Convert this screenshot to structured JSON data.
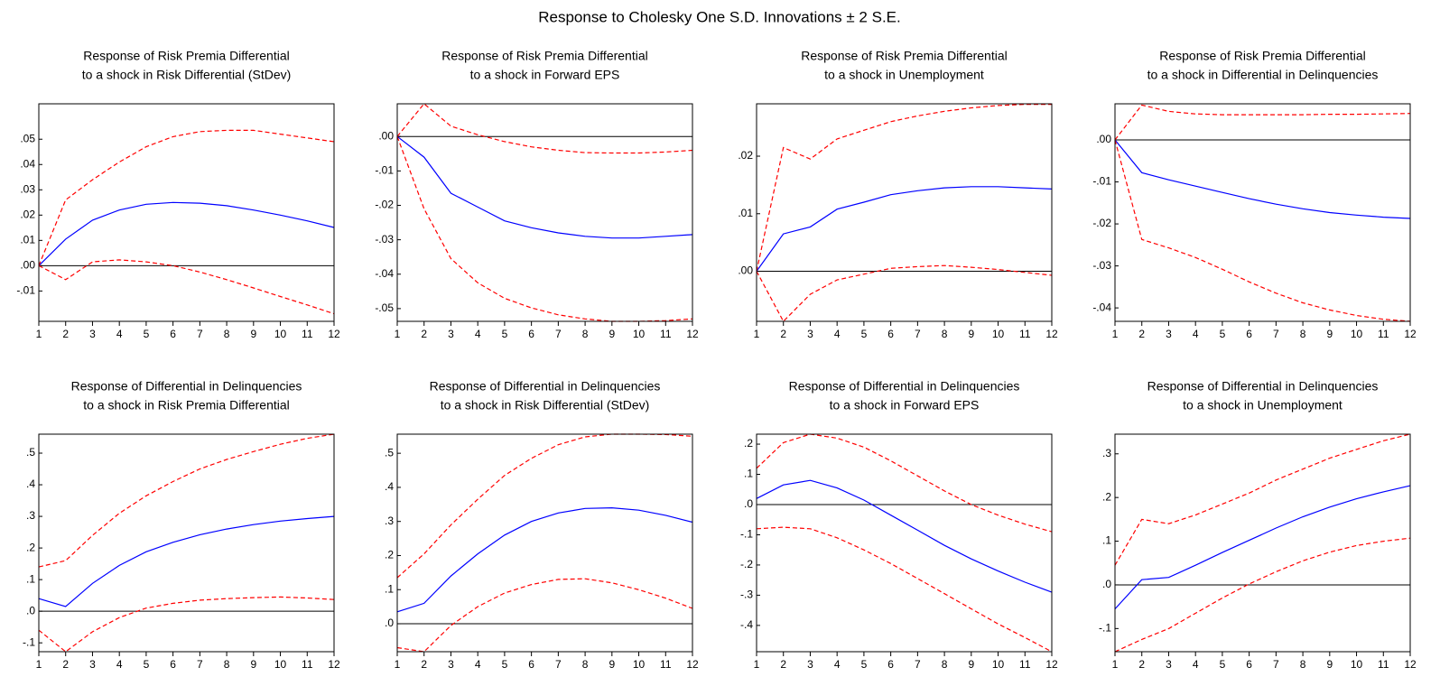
{
  "title": "Response to Cholesky One S.D. Innovations ± 2 S.E.",
  "chart_data": [
    {
      "type": "line",
      "title": "Response of Risk Premia Differential",
      "subtitle": "to a shock in Risk Differential (StDev)",
      "x": [
        1,
        2,
        3,
        4,
        5,
        6,
        7,
        8,
        9,
        10,
        11,
        12
      ],
      "xlim": [
        1,
        12
      ],
      "xticks": [
        1,
        2,
        3,
        4,
        5,
        6,
        7,
        8,
        9,
        10,
        11,
        12
      ],
      "ylim": [
        -0.022,
        0.064
      ],
      "yticks": [
        {
          "value": -0.01,
          "label": "-.01"
        },
        {
          "value": 0,
          "label": ".00"
        },
        {
          "value": 0.01,
          "label": ".01"
        },
        {
          "value": 0.02,
          "label": ".02"
        },
        {
          "value": 0.03,
          "label": ".03"
        },
        {
          "value": 0.04,
          "label": ".04"
        },
        {
          "value": 0.05,
          "label": ".05"
        }
      ],
      "zero_line": 0,
      "series": [
        {
          "color": "#0000ff",
          "dash": false,
          "values": [
            0,
            0.0105,
            0.018,
            0.022,
            0.0243,
            0.025,
            0.0247,
            0.0237,
            0.022,
            0.02,
            0.0177,
            0.0151
          ]
        },
        {
          "color": "#ff0000",
          "dash": true,
          "values": [
            0,
            0.026,
            0.034,
            0.041,
            0.047,
            0.051,
            0.053,
            0.0535,
            0.0535,
            0.052,
            0.0505,
            0.049
          ]
        },
        {
          "color": "#ff0000",
          "dash": true,
          "values": [
            0,
            -0.0055,
            0.0015,
            0.0023,
            0.0015,
            0,
            -0.0025,
            -0.0055,
            -0.0088,
            -0.0122,
            -0.0155,
            -0.019
          ]
        }
      ]
    },
    {
      "type": "line",
      "title": "Response of Risk Premia Differential",
      "subtitle": "to a shock in Forward EPS",
      "x": [
        1,
        2,
        3,
        4,
        5,
        6,
        7,
        8,
        9,
        10,
        11,
        12
      ],
      "xlim": [
        1,
        12
      ],
      "xticks": [
        1,
        2,
        3,
        4,
        5,
        6,
        7,
        8,
        9,
        10,
        11,
        12
      ],
      "ylim": [
        -0.0537,
        0.0095
      ],
      "yticks": [
        {
          "value": -0.05,
          "label": "-.05"
        },
        {
          "value": -0.04,
          "label": "-.04"
        },
        {
          "value": -0.03,
          "label": "-.03"
        },
        {
          "value": -0.02,
          "label": "-.02"
        },
        {
          "value": -0.01,
          "label": "-.01"
        },
        {
          "value": 0,
          "label": ".00"
        }
      ],
      "zero_line": 0,
      "series": [
        {
          "color": "#0000ff",
          "dash": false,
          "values": [
            0,
            -0.006,
            -0.0165,
            -0.0205,
            -0.0245,
            -0.0265,
            -0.028,
            -0.029,
            -0.0295,
            -0.0295,
            -0.029,
            -0.0285
          ]
        },
        {
          "color": "#ff0000",
          "dash": true,
          "values": [
            0,
            0.0095,
            0.003,
            0.0005,
            -0.0015,
            -0.003,
            -0.004,
            -0.0047,
            -0.0048,
            -0.0048,
            -0.0045,
            -0.004
          ]
        },
        {
          "color": "#ff0000",
          "dash": true,
          "values": [
            0,
            -0.021,
            -0.0355,
            -0.0425,
            -0.047,
            -0.0498,
            -0.0518,
            -0.053,
            -0.0537,
            -0.0537,
            -0.0535,
            -0.053
          ]
        }
      ]
    },
    {
      "type": "line",
      "title": "Response of Risk Premia Differential",
      "subtitle": "to a shock in Unemployment",
      "x": [
        1,
        2,
        3,
        4,
        5,
        6,
        7,
        8,
        9,
        10,
        11,
        12
      ],
      "xlim": [
        1,
        12
      ],
      "xticks": [
        1,
        2,
        3,
        4,
        5,
        6,
        7,
        8,
        9,
        10,
        11,
        12
      ],
      "ylim": [
        -0.0087,
        0.0291
      ],
      "yticks": [
        {
          "value": 0,
          "label": ".00"
        },
        {
          "value": 0.01,
          "label": ".01"
        },
        {
          "value": 0.02,
          "label": ".02"
        }
      ],
      "zero_line": 0,
      "series": [
        {
          "color": "#0000ff",
          "dash": false,
          "values": [
            0,
            0.0065,
            0.0077,
            0.0108,
            0.012,
            0.0133,
            0.014,
            0.0145,
            0.0147,
            0.0147,
            0.0145,
            0.0143
          ]
        },
        {
          "color": "#ff0000",
          "dash": true,
          "values": [
            0,
            0.0215,
            0.0195,
            0.023,
            0.0245,
            0.026,
            0.027,
            0.0278,
            0.0284,
            0.0288,
            0.029,
            0.029
          ]
        },
        {
          "color": "#ff0000",
          "dash": true,
          "values": [
            0,
            -0.0087,
            -0.004,
            -0.0015,
            -0.0005,
            0.0005,
            0.0008,
            0.001,
            0.0007,
            0.0003,
            -0.0002,
            -0.0007
          ]
        }
      ]
    },
    {
      "type": "line",
      "title": "Response of Risk Premia Differential",
      "subtitle": "to a shock in  Differential in Delinquencies",
      "x": [
        1,
        2,
        3,
        4,
        5,
        6,
        7,
        8,
        9,
        10,
        11,
        12
      ],
      "xlim": [
        1,
        12
      ],
      "xticks": [
        1,
        2,
        3,
        4,
        5,
        6,
        7,
        8,
        9,
        10,
        11,
        12
      ],
      "ylim": [
        -0.0432,
        0.0086
      ],
      "yticks": [
        {
          "value": -0.04,
          "label": "-.04"
        },
        {
          "value": -0.03,
          "label": "-.03"
        },
        {
          "value": -0.02,
          "label": "-.02"
        },
        {
          "value": -0.01,
          "label": "-.01"
        },
        {
          "value": 0,
          "label": ".00"
        }
      ],
      "zero_line": 0,
      "series": [
        {
          "color": "#0000ff",
          "dash": false,
          "values": [
            0,
            -0.0078,
            -0.0095,
            -0.011,
            -0.0125,
            -0.014,
            -0.0153,
            -0.0164,
            -0.0173,
            -0.0179,
            -0.0184,
            -0.0187
          ]
        },
        {
          "color": "#ff0000",
          "dash": true,
          "values": [
            0,
            0.0083,
            0.0068,
            0.0062,
            0.006,
            0.006,
            0.006,
            0.006,
            0.0061,
            0.0061,
            0.0062,
            0.0063
          ]
        },
        {
          "color": "#ff0000",
          "dash": true,
          "values": [
            0,
            -0.0237,
            -0.0257,
            -0.028,
            -0.0308,
            -0.0338,
            -0.0365,
            -0.0388,
            -0.0405,
            -0.0418,
            -0.0427,
            -0.0432
          ]
        }
      ]
    },
    {
      "type": "line",
      "title": "Response of Differential in Delinquencies",
      "subtitle": "to a shock in Risk Premia Differential",
      "x": [
        1,
        2,
        3,
        4,
        5,
        6,
        7,
        8,
        9,
        10,
        11,
        12
      ],
      "xlim": [
        1,
        12
      ],
      "xticks": [
        1,
        2,
        3,
        4,
        5,
        6,
        7,
        8,
        9,
        10,
        11,
        12
      ],
      "ylim": [
        -0.128,
        0.56
      ],
      "yticks": [
        {
          "value": -0.1,
          "label": "-.1"
        },
        {
          "value": 0,
          "label": ".0"
        },
        {
          "value": 0.1,
          "label": ".1"
        },
        {
          "value": 0.2,
          "label": ".2"
        },
        {
          "value": 0.3,
          "label": ".3"
        },
        {
          "value": 0.4,
          "label": ".4"
        },
        {
          "value": 0.5,
          "label": ".5"
        }
      ],
      "zero_line": 0,
      "series": [
        {
          "color": "#0000ff",
          "dash": false,
          "values": [
            0.04,
            0.015,
            0.088,
            0.145,
            0.188,
            0.218,
            0.242,
            0.26,
            0.274,
            0.285,
            0.293,
            0.3
          ]
        },
        {
          "color": "#ff0000",
          "dash": true,
          "values": [
            0.14,
            0.16,
            0.24,
            0.31,
            0.365,
            0.41,
            0.45,
            0.48,
            0.505,
            0.528,
            0.547,
            0.56
          ]
        },
        {
          "color": "#ff0000",
          "dash": true,
          "values": [
            -0.06,
            -0.128,
            -0.065,
            -0.02,
            0.01,
            0.025,
            0.035,
            0.04,
            0.043,
            0.045,
            0.042,
            0.037
          ]
        }
      ]
    },
    {
      "type": "line",
      "title": "Response of Differential in Delinquencies",
      "subtitle": "to a shock in Risk Differential (StDev)",
      "x": [
        1,
        2,
        3,
        4,
        5,
        6,
        7,
        8,
        9,
        10,
        11,
        12
      ],
      "xlim": [
        1,
        12
      ],
      "xticks": [
        1,
        2,
        3,
        4,
        5,
        6,
        7,
        8,
        9,
        10,
        11,
        12
      ],
      "ylim": [
        -0.082,
        0.556
      ],
      "yticks": [
        {
          "value": 0,
          "label": ".0"
        },
        {
          "value": 0.1,
          "label": ".1"
        },
        {
          "value": 0.2,
          "label": ".2"
        },
        {
          "value": 0.3,
          "label": ".3"
        },
        {
          "value": 0.4,
          "label": ".4"
        },
        {
          "value": 0.5,
          "label": ".5"
        }
      ],
      "zero_line": 0,
      "series": [
        {
          "color": "#0000ff",
          "dash": false,
          "values": [
            0.035,
            0.06,
            0.14,
            0.205,
            0.26,
            0.3,
            0.325,
            0.338,
            0.34,
            0.333,
            0.318,
            0.298
          ]
        },
        {
          "color": "#ff0000",
          "dash": true,
          "values": [
            0.135,
            0.205,
            0.29,
            0.365,
            0.435,
            0.485,
            0.525,
            0.548,
            0.556,
            0.556,
            0.555,
            0.55
          ]
        },
        {
          "color": "#ff0000",
          "dash": true,
          "values": [
            -0.07,
            -0.082,
            -0.005,
            0.05,
            0.09,
            0.115,
            0.13,
            0.132,
            0.12,
            0.1,
            0.075,
            0.045
          ]
        }
      ]
    },
    {
      "type": "line",
      "title": "Response of Differential in Delinquencies",
      "subtitle": "to a shock in Forward EPS",
      "x": [
        1,
        2,
        3,
        4,
        5,
        6,
        7,
        8,
        9,
        10,
        11,
        12
      ],
      "xlim": [
        1,
        12
      ],
      "xticks": [
        1,
        2,
        3,
        4,
        5,
        6,
        7,
        8,
        9,
        10,
        11,
        12
      ],
      "ylim": [
        -0.487,
        0.233
      ],
      "yticks": [
        {
          "value": -0.4,
          "label": "-.4"
        },
        {
          "value": -0.3,
          "label": "-.3"
        },
        {
          "value": -0.2,
          "label": "-.2"
        },
        {
          "value": -0.1,
          "label": "-.1"
        },
        {
          "value": 0,
          "label": ".0"
        },
        {
          "value": 0.1,
          "label": ".1"
        },
        {
          "value": 0.2,
          "label": ".2"
        }
      ],
      "zero_line": 0,
      "series": [
        {
          "color": "#0000ff",
          "dash": false,
          "values": [
            0.02,
            0.065,
            0.08,
            0.055,
            0.015,
            -0.035,
            -0.085,
            -0.135,
            -0.18,
            -0.22,
            -0.257,
            -0.29
          ]
        },
        {
          "color": "#ff0000",
          "dash": true,
          "values": [
            0.12,
            0.205,
            0.233,
            0.22,
            0.19,
            0.145,
            0.095,
            0.045,
            0,
            -0.035,
            -0.065,
            -0.09
          ]
        },
        {
          "color": "#ff0000",
          "dash": true,
          "values": [
            -0.08,
            -0.075,
            -0.08,
            -0.11,
            -0.15,
            -0.195,
            -0.245,
            -0.295,
            -0.345,
            -0.395,
            -0.44,
            -0.487
          ]
        }
      ]
    },
    {
      "type": "line",
      "title": "Response of Differential in Delinquencies",
      "subtitle": "to a shock in Unemployment",
      "x": [
        1,
        2,
        3,
        4,
        5,
        6,
        7,
        8,
        9,
        10,
        11,
        12
      ],
      "xlim": [
        1,
        12
      ],
      "xticks": [
        1,
        2,
        3,
        4,
        5,
        6,
        7,
        8,
        9,
        10,
        11,
        12
      ],
      "ylim": [
        -0.153,
        0.345
      ],
      "yticks": [
        {
          "value": -0.1,
          "label": "-.1"
        },
        {
          "value": 0,
          "label": ".0"
        },
        {
          "value": 0.1,
          "label": ".1"
        },
        {
          "value": 0.2,
          "label": ".2"
        },
        {
          "value": 0.3,
          "label": ".3"
        }
      ],
      "zero_line": 0,
      "series": [
        {
          "color": "#0000ff",
          "dash": false,
          "values": [
            -0.055,
            0.012,
            0.017,
            0.045,
            0.074,
            0.102,
            0.13,
            0.156,
            0.178,
            0.197,
            0.213,
            0.227
          ]
        },
        {
          "color": "#ff0000",
          "dash": true,
          "values": [
            0.045,
            0.15,
            0.14,
            0.16,
            0.185,
            0.21,
            0.24,
            0.265,
            0.29,
            0.31,
            0.33,
            0.345
          ]
        },
        {
          "color": "#ff0000",
          "dash": true,
          "values": [
            -0.153,
            -0.125,
            -0.1,
            -0.065,
            -0.03,
            0.002,
            0.03,
            0.055,
            0.075,
            0.09,
            0.1,
            0.107
          ]
        }
      ]
    }
  ]
}
